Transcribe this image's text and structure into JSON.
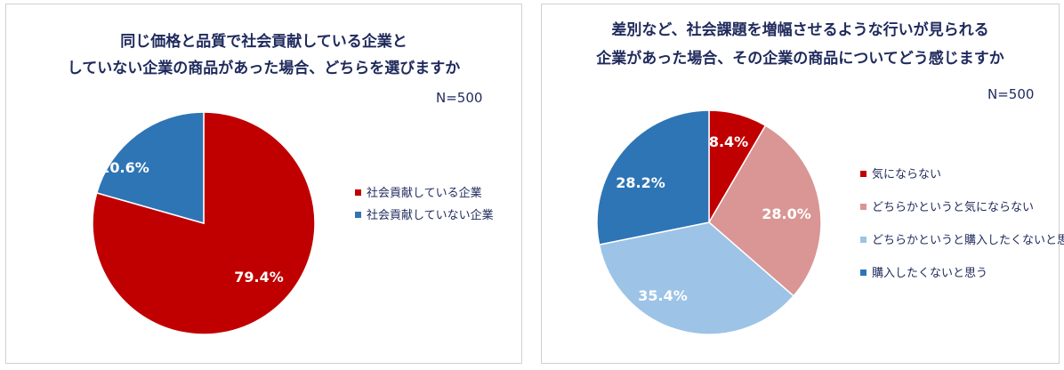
{
  "chart_data": [
    {
      "type": "pie",
      "title_lines": [
        "同じ価格と品質で社会貢献している企業と",
        "していない企業の商品があった場合、どちらを選びますか"
      ],
      "sample": "N=500",
      "slices": [
        {
          "label": "社会貢献している企業",
          "value": 79.4,
          "display": "79.4%",
          "color": "#c00000"
        },
        {
          "label": "社会貢献していない企業",
          "value": 20.6,
          "display": "20.6%",
          "color": "#2e75b6"
        }
      ]
    },
    {
      "type": "pie",
      "title_lines": [
        "差別など、社会課題を増幅させるような行いが見られる",
        "企業があった場合、その企業の商品についてどう感じますか"
      ],
      "sample": "N=500",
      "slices": [
        {
          "label": "気にならない",
          "value": 8.4,
          "display": "8.4%",
          "color": "#c00000"
        },
        {
          "label": "どちらかというと気にならない",
          "value": 28.0,
          "display": "28.0%",
          "color": "#d99694"
        },
        {
          "label": "どちらかというと購入したくないと思う",
          "value": 35.4,
          "display": "35.4%",
          "color": "#9dc3e6"
        },
        {
          "label": "購入したくないと思う",
          "value": 28.2,
          "display": "28.2%",
          "color": "#2e75b6"
        }
      ]
    }
  ]
}
